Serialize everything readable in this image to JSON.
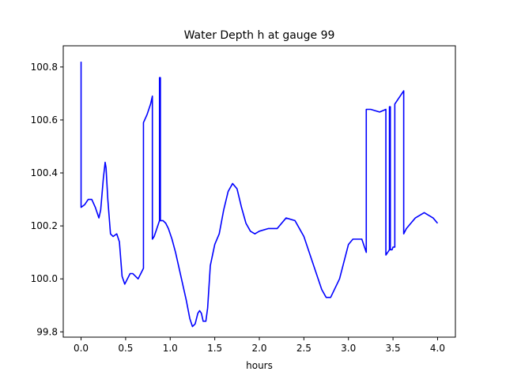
{
  "chart_data": {
    "type": "line",
    "title": "Water Depth h at gauge 99",
    "xlabel": "hours",
    "ylabel": "",
    "xlim": [
      -0.2,
      4.2
    ],
    "ylim": [
      99.78,
      100.88
    ],
    "xticks": [
      0.0,
      0.5,
      1.0,
      1.5,
      2.0,
      2.5,
      3.0,
      3.5,
      4.0
    ],
    "xtick_labels": [
      "0.0",
      "0.5",
      "1.0",
      "1.5",
      "2.0",
      "2.5",
      "3.0",
      "3.5",
      "4.0"
    ],
    "yticks": [
      99.8,
      100.0,
      100.2,
      100.4,
      100.6,
      100.8
    ],
    "ytick_labels": [
      "99.8",
      "100.0",
      "100.2",
      "100.4",
      "100.6",
      "100.8"
    ],
    "grid": false,
    "line_color": "#0000ff",
    "series": [
      {
        "x": [
          0.0,
          0.0,
          0.0,
          0.04,
          0.08,
          0.12,
          0.16,
          0.2,
          0.22,
          0.25,
          0.27,
          0.28,
          0.3,
          0.33,
          0.36,
          0.4,
          0.43,
          0.46,
          0.49,
          0.52,
          0.55,
          0.58,
          0.61,
          0.64,
          0.67,
          0.7,
          0.7,
          0.7,
          0.74,
          0.78,
          0.8,
          0.8,
          0.82,
          0.85,
          0.88,
          0.88,
          0.89,
          0.89,
          0.92,
          0.95,
          0.98,
          1.02,
          1.06,
          1.1,
          1.14,
          1.18,
          1.22,
          1.25,
          1.28,
          1.31,
          1.33,
          1.35,
          1.37,
          1.4,
          1.42,
          1.45,
          1.5,
          1.55,
          1.6,
          1.65,
          1.7,
          1.75,
          1.8,
          1.85,
          1.9,
          1.95,
          2.0,
          2.1,
          2.2,
          2.3,
          2.4,
          2.5,
          2.6,
          2.7,
          2.75,
          2.8,
          2.9,
          3.0,
          3.05,
          3.1,
          3.15,
          3.2,
          3.2,
          3.25,
          3.35,
          3.42,
          3.42,
          3.42,
          3.46,
          3.46,
          3.47,
          3.47,
          3.49,
          3.5,
          3.52,
          3.52,
          3.62,
          3.62,
          3.65,
          3.7,
          3.75,
          3.8,
          3.85,
          3.9,
          3.95,
          4.0
        ],
        "y": [
          100.82,
          100.27,
          100.27,
          100.28,
          100.3,
          100.3,
          100.27,
          100.23,
          100.26,
          100.38,
          100.44,
          100.42,
          100.3,
          100.17,
          100.16,
          100.17,
          100.14,
          100.01,
          99.98,
          100.0,
          100.02,
          100.02,
          100.01,
          100.0,
          100.02,
          100.04,
          100.59,
          100.59,
          100.62,
          100.66,
          100.69,
          100.15,
          100.16,
          100.19,
          100.22,
          100.76,
          100.76,
          100.22,
          100.22,
          100.21,
          100.19,
          100.15,
          100.1,
          100.04,
          99.98,
          99.92,
          99.85,
          99.82,
          99.83,
          99.87,
          99.88,
          99.87,
          99.84,
          99.84,
          99.89,
          100.05,
          100.13,
          100.17,
          100.26,
          100.33,
          100.36,
          100.34,
          100.27,
          100.21,
          100.18,
          100.17,
          100.18,
          100.19,
          100.19,
          100.23,
          100.22,
          100.16,
          100.06,
          99.96,
          99.93,
          99.93,
          100.0,
          100.13,
          100.15,
          100.15,
          100.15,
          100.1,
          100.64,
          100.64,
          100.63,
          100.64,
          100.64,
          100.09,
          100.11,
          100.65,
          100.65,
          100.11,
          100.11,
          100.12,
          100.12,
          100.66,
          100.71,
          100.17,
          100.19,
          100.21,
          100.23,
          100.24,
          100.25,
          100.24,
          100.23,
          100.21
        ]
      }
    ]
  }
}
